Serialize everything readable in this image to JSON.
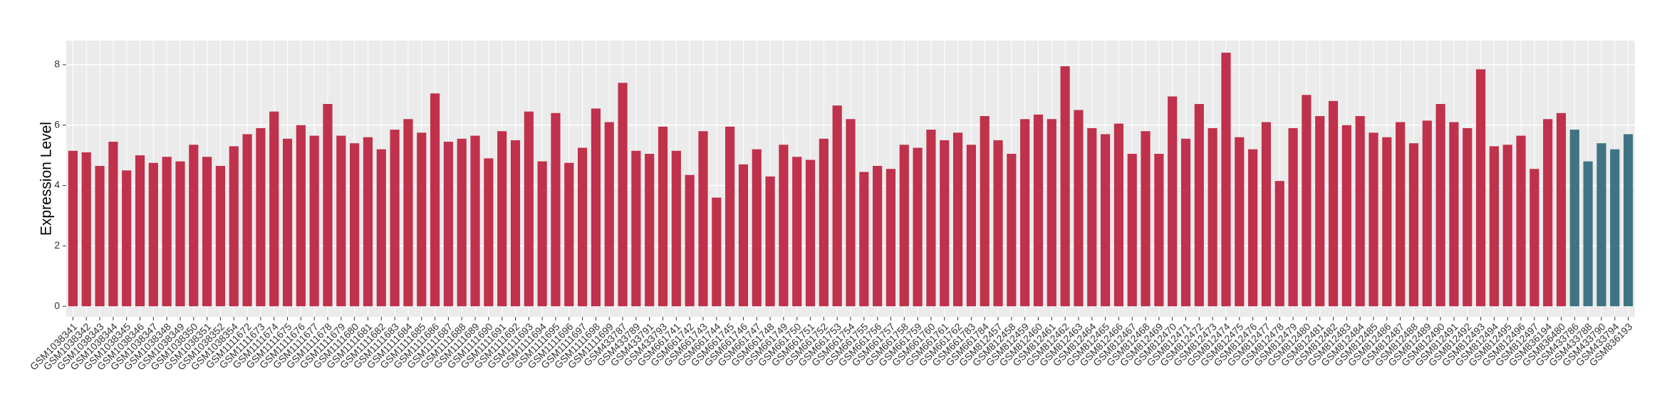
{
  "chart_data": {
    "type": "bar",
    "y_label": "Expression Level",
    "categories": [
      "GSM1038341",
      "GSM1038342",
      "GSM1038343",
      "GSM1038344",
      "GSM1038345",
      "GSM1038346",
      "GSM1038347",
      "GSM1038348",
      "GSM1038349",
      "GSM1038350",
      "GSM1038351",
      "GSM1038352",
      "GSM1038354",
      "GSM1111672",
      "GSM1111673",
      "GSM1111674",
      "GSM1111675",
      "GSM1111676",
      "GSM1111677",
      "GSM1111678",
      "GSM1111679",
      "GSM1111680",
      "GSM1111681",
      "GSM1111682",
      "GSM1111683",
      "GSM1111684",
      "GSM1111685",
      "GSM1111686",
      "GSM1111687",
      "GSM1111688",
      "GSM1111689",
      "GSM1111690",
      "GSM1111691",
      "GSM1111692",
      "GSM1111693",
      "GSM1111694",
      "GSM1111695",
      "GSM1111696",
      "GSM1111697",
      "GSM1111698",
      "GSM1111699",
      "GSM433787",
      "GSM433789",
      "GSM433791",
      "GSM433793",
      "GSM661741",
      "GSM661742",
      "GSM661743",
      "GSM661744",
      "GSM661745",
      "GSM661746",
      "GSM661747",
      "GSM661748",
      "GSM661749",
      "GSM661750",
      "GSM661751",
      "GSM661752",
      "GSM661753",
      "GSM661754",
      "GSM661755",
      "GSM661756",
      "GSM661757",
      "GSM661758",
      "GSM661759",
      "GSM661760",
      "GSM661761",
      "GSM661762",
      "GSM661783",
      "GSM661784",
      "GSM812457",
      "GSM812458",
      "GSM812459",
      "GSM812460",
      "GSM812461",
      "GSM812462",
      "GSM812463",
      "GSM812464",
      "GSM812465",
      "GSM812466",
      "GSM812467",
      "GSM812468",
      "GSM812469",
      "GSM812470",
      "GSM812471",
      "GSM812472",
      "GSM812473",
      "GSM812474",
      "GSM812475",
      "GSM812476",
      "GSM812477",
      "GSM812478",
      "GSM812479",
      "GSM812480",
      "GSM812481",
      "GSM812482",
      "GSM812483",
      "GSM812484",
      "GSM812485",
      "GSM812486",
      "GSM812487",
      "GSM812488",
      "GSM812489",
      "GSM812490",
      "GSM812491",
      "GSM812492",
      "GSM812493",
      "GSM812494",
      "GSM812495",
      "GSM812496",
      "GSM812497",
      "GSM836194",
      "GSM836480",
      "GSM433786",
      "GSM433788",
      "GSM433790",
      "GSM433794",
      "GSM836193"
    ],
    "values": [
      5.15,
      5.1,
      4.65,
      5.45,
      4.5,
      5.0,
      4.75,
      4.95,
      4.8,
      5.35,
      4.95,
      4.65,
      5.3,
      5.7,
      5.9,
      6.45,
      5.55,
      6.0,
      5.65,
      6.7,
      5.65,
      5.4,
      5.6,
      5.2,
      5.85,
      6.2,
      5.75,
      7.05,
      5.45,
      5.55,
      5.65,
      4.9,
      5.8,
      5.5,
      6.45,
      4.8,
      6.4,
      4.75,
      5.25,
      6.55,
      6.1,
      7.4,
      5.15,
      5.05,
      5.95,
      5.15,
      4.35,
      5.8,
      3.6,
      5.95,
      4.7,
      5.2,
      4.3,
      5.35,
      4.95,
      4.85,
      5.55,
      6.65,
      6.2,
      4.45,
      4.65,
      4.55,
      5.35,
      5.25,
      5.85,
      5.5,
      5.75,
      5.35,
      6.3,
      5.5,
      5.05,
      6.2,
      6.35,
      6.2,
      7.95,
      6.5,
      5.9,
      5.7,
      6.05,
      5.05,
      5.8,
      5.05,
      6.95,
      5.55,
      6.7,
      5.9,
      8.4,
      5.6,
      5.2,
      6.1,
      4.15,
      5.9,
      7.0,
      6.3,
      6.8,
      6.0,
      6.3,
      5.75,
      5.6,
      6.1,
      5.4,
      6.15,
      6.7,
      6.1,
      5.9,
      7.85,
      5.3,
      5.35,
      5.65,
      4.55,
      6.2,
      6.4,
      5.85,
      4.8,
      5.4,
      5.2,
      5.7
    ],
    "colors": [
      "#c0314b",
      "#c0314b",
      "#c0314b",
      "#c0314b",
      "#c0314b",
      "#c0314b",
      "#c0314b",
      "#c0314b",
      "#c0314b",
      "#c0314b",
      "#c0314b",
      "#c0314b",
      "#c0314b",
      "#c0314b",
      "#c0314b",
      "#c0314b",
      "#c0314b",
      "#c0314b",
      "#c0314b",
      "#c0314b",
      "#c0314b",
      "#c0314b",
      "#c0314b",
      "#c0314b",
      "#c0314b",
      "#c0314b",
      "#c0314b",
      "#c0314b",
      "#c0314b",
      "#c0314b",
      "#c0314b",
      "#c0314b",
      "#c0314b",
      "#c0314b",
      "#c0314b",
      "#c0314b",
      "#c0314b",
      "#c0314b",
      "#c0314b",
      "#c0314b",
      "#c0314b",
      "#c0314b",
      "#c0314b",
      "#c0314b",
      "#c0314b",
      "#c0314b",
      "#c0314b",
      "#c0314b",
      "#c0314b",
      "#c0314b",
      "#c0314b",
      "#c0314b",
      "#c0314b",
      "#c0314b",
      "#c0314b",
      "#c0314b",
      "#c0314b",
      "#c0314b",
      "#c0314b",
      "#c0314b",
      "#c0314b",
      "#c0314b",
      "#c0314b",
      "#c0314b",
      "#c0314b",
      "#c0314b",
      "#c0314b",
      "#c0314b",
      "#c0314b",
      "#c0314b",
      "#c0314b",
      "#c0314b",
      "#c0314b",
      "#c0314b",
      "#c0314b",
      "#c0314b",
      "#c0314b",
      "#c0314b",
      "#c0314b",
      "#c0314b",
      "#c0314b",
      "#c0314b",
      "#c0314b",
      "#c0314b",
      "#c0314b",
      "#c0314b",
      "#c0314b",
      "#c0314b",
      "#c0314b",
      "#c0314b",
      "#c0314b",
      "#c0314b",
      "#c0314b",
      "#c0314b",
      "#c0314b",
      "#c0314b",
      "#c0314b",
      "#c0314b",
      "#c0314b",
      "#c0314b",
      "#c0314b",
      "#c0314b",
      "#c0314b",
      "#c0314b",
      "#c0314b",
      "#c0314b",
      "#c0314b",
      "#c0314b",
      "#c0314b",
      "#c0314b",
      "#c0314b",
      "#c0314b",
      "#3f7484",
      "#3f7484",
      "#3f7484",
      "#3f7484",
      "#3f7484"
    ],
    "ylim": [
      -0.35,
      8.8
    ],
    "yticks": [
      0,
      2,
      4,
      6,
      8
    ],
    "grid": true
  }
}
